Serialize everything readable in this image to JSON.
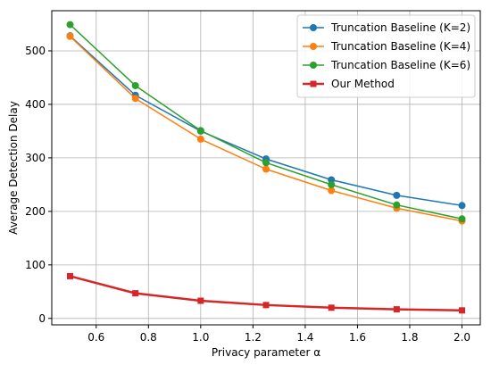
{
  "chart_data": {
    "type": "line",
    "title": "",
    "xlabel": "Privacy parameter α",
    "ylabel": "Average Detection Delay",
    "xlim": [
      0.43,
      2.07
    ],
    "ylim": [
      -12,
      575
    ],
    "xticks": [
      0.6,
      0.8,
      1.0,
      1.2,
      1.4,
      1.6,
      1.8,
      2.0
    ],
    "xtick_labels": [
      "0.6",
      "0.8",
      "1.0",
      "1.2",
      "1.4",
      "1.6",
      "1.8",
      "2.0"
    ],
    "yticks": [
      0,
      100,
      200,
      300,
      400,
      500
    ],
    "ytick_labels": [
      "0",
      "100",
      "200",
      "300",
      "400",
      "500"
    ],
    "grid": true,
    "legend_position": "top-right",
    "x": [
      0.5,
      0.75,
      1.0,
      1.25,
      1.5,
      1.75,
      2.0
    ],
    "series": [
      {
        "name": "Truncation Baseline (K=2)",
        "color": "#1f77b4",
        "marker": "circle",
        "line_width": 1.5,
        "values": [
          528,
          417,
          350,
          298,
          259,
          230,
          211
        ]
      },
      {
        "name": "Truncation Baseline (K=4)",
        "color": "#ff7f0e",
        "marker": "circle",
        "line_width": 1.5,
        "values": [
          527,
          411,
          335,
          279,
          239,
          206,
          182
        ]
      },
      {
        "name": "Truncation Baseline (K=6)",
        "color": "#2ca02c",
        "marker": "circle",
        "line_width": 1.5,
        "values": [
          549,
          435,
          351,
          291,
          250,
          212,
          186
        ]
      },
      {
        "name": "Our Method",
        "color": "#d62728",
        "marker": "square",
        "line_width": 2.5,
        "values": [
          79,
          47,
          33,
          25,
          20,
          17,
          15
        ]
      }
    ]
  }
}
